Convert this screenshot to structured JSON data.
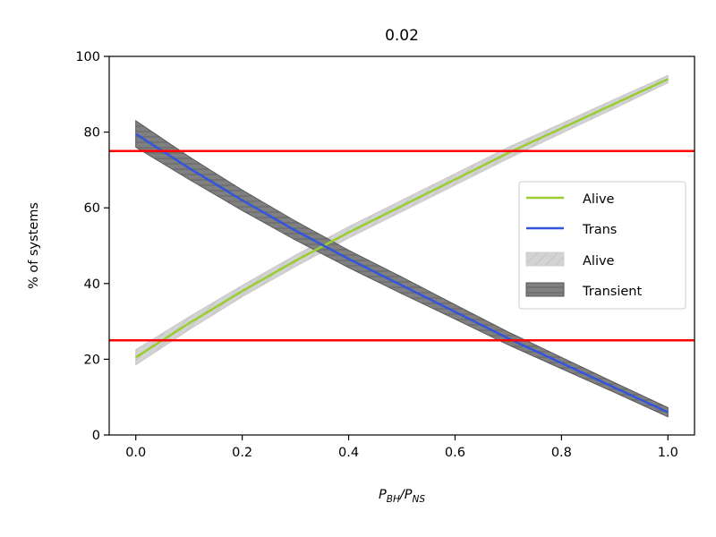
{
  "chart_data": {
    "type": "line",
    "title": "0.02",
    "xlabel": "P_BH/P_NS",
    "xlabel_parts": {
      "p1": "P",
      "s1": "BH",
      "sep": "/P",
      "s2": "NS"
    },
    "ylabel": "% of systems",
    "xlim": [
      -0.05,
      1.05
    ],
    "ylim": [
      0,
      100
    ],
    "xticks": [
      0.0,
      0.2,
      0.4,
      0.6,
      0.8,
      1.0
    ],
    "xtick_labels": [
      "0.0",
      "0.2",
      "0.4",
      "0.6",
      "0.8",
      "1.0"
    ],
    "yticks": [
      0,
      20,
      40,
      60,
      80,
      100
    ],
    "ytick_labels": [
      "0",
      "20",
      "40",
      "60",
      "80",
      "100"
    ],
    "grid": false,
    "x": [
      0.0,
      0.1,
      0.2,
      0.3,
      0.4,
      0.5,
      0.6,
      0.7,
      0.8,
      0.9,
      1.0
    ],
    "series": [
      {
        "name": "Alive",
        "color": "#9acd32",
        "values": [
          20.5,
          29.5,
          38.0,
          46.0,
          53.5,
          60.5,
          67.5,
          74.5,
          81.0,
          87.5,
          94.0
        ]
      },
      {
        "name": "Trans",
        "color": "#3355dd",
        "values": [
          79.5,
          70.5,
          62.0,
          54.0,
          46.5,
          39.5,
          32.5,
          25.5,
          19.0,
          12.5,
          6.0
        ]
      }
    ],
    "bands": [
      {
        "name": "Alive",
        "color": "#d3d3d3",
        "lower": [
          18.5,
          27.8,
          36.5,
          44.5,
          52.0,
          59.0,
          66.0,
          73.0,
          79.7,
          86.3,
          93.0
        ],
        "upper": [
          22.5,
          31.2,
          39.5,
          47.5,
          55.0,
          62.0,
          69.0,
          76.0,
          82.3,
          88.7,
          95.0
        ]
      },
      {
        "name": "Transient",
        "color": "#808080",
        "lower": [
          76.0,
          67.5,
          59.3,
          51.5,
          44.2,
          37.3,
          30.6,
          23.8,
          17.5,
          11.2,
          4.8
        ],
        "upper": [
          83.0,
          73.5,
          64.7,
          56.5,
          48.8,
          41.7,
          34.4,
          27.2,
          20.5,
          13.8,
          7.2
        ]
      }
    ],
    "hlines": [
      {
        "y": 75,
        "color": "#ff0000"
      },
      {
        "y": 25,
        "color": "#ff0000"
      }
    ],
    "legend_position": "center-right"
  }
}
